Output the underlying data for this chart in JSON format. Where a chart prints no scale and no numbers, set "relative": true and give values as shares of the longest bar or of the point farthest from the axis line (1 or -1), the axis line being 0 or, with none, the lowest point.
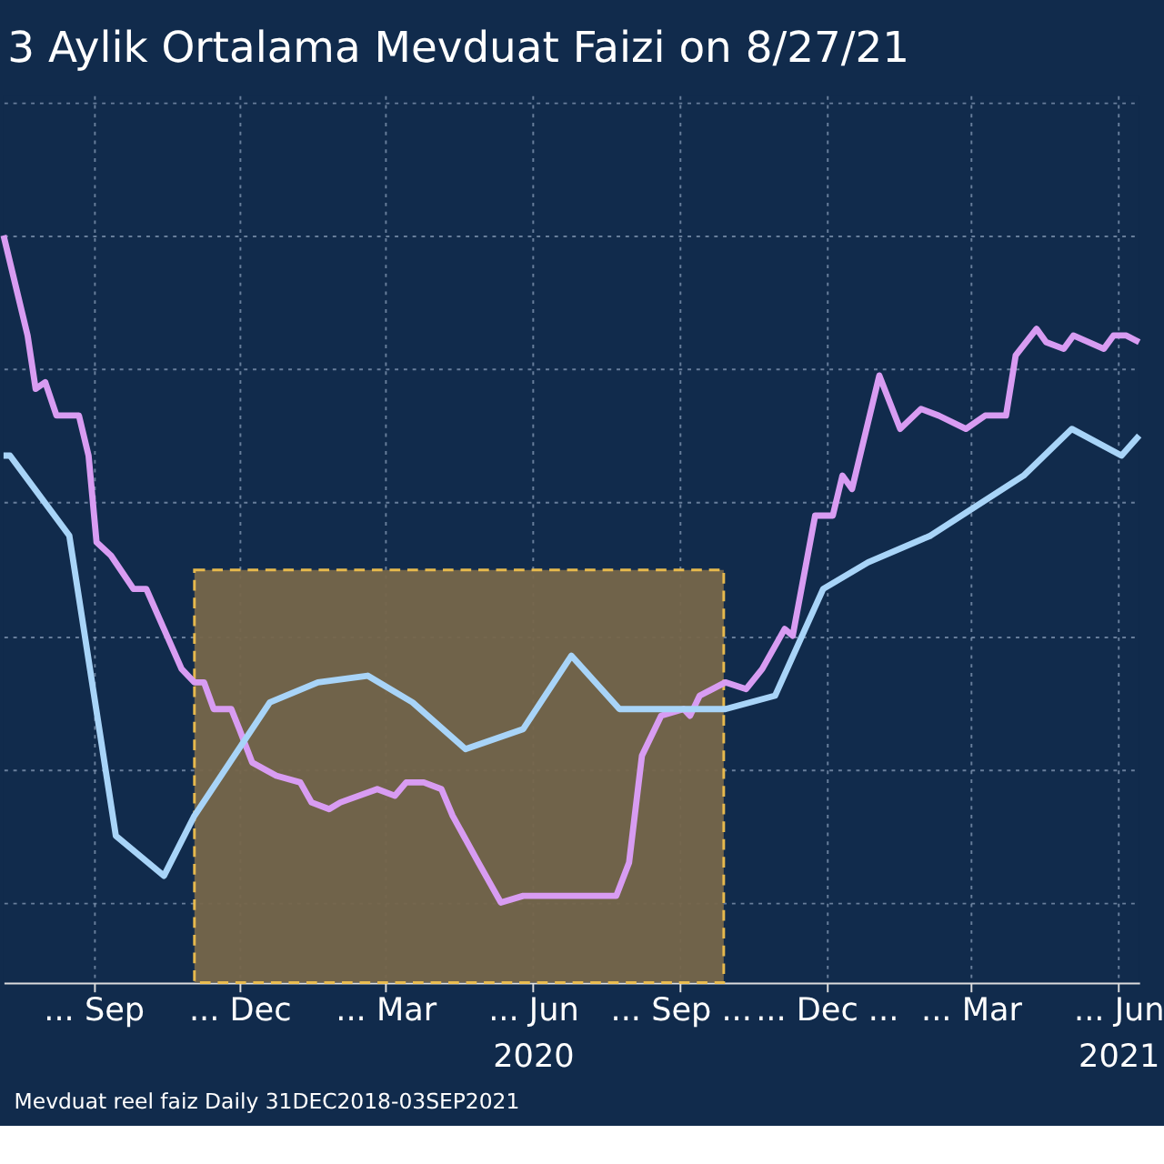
{
  "chart_data": {
    "type": "line",
    "title": "3 Aylik Ortalama Mevduat Faizi on 8/27/21",
    "relative": true,
    "grid": true,
    "legend": false,
    "marker": "none",
    "line_style": "solid",
    "xlim": [
      "2019-07-21",
      "2021-06-28"
    ],
    "xticks": [
      {
        "value": "2019-09-15",
        "label": "... Sep"
      },
      {
        "value": "2019-12-15",
        "label": "... Dec"
      },
      {
        "value": "2020-03-15",
        "label": "... Mar"
      },
      {
        "value": "2020-06-15",
        "label": "... Jun\n2020"
      },
      {
        "value": "2020-09-15",
        "label": "... Sep ..."
      },
      {
        "value": "2020-12-15",
        "label": "... Dec ..."
      },
      {
        "value": "2021-03-15",
        "label": "... Mar"
      },
      {
        "value": "2021-06-15",
        "label": "... Jun\n2021"
      }
    ],
    "series": [
      {
        "color": "#d89cf2",
        "x": [
          "2019-07-21",
          "2019-07-29",
          "2019-08-05",
          "2019-08-10",
          "2019-08-16",
          "2019-08-23",
          "2019-09-06",
          "2019-09-12",
          "2019-09-17",
          "2019-09-26",
          "2019-10-10",
          "2019-10-18",
          "2019-10-29",
          "2019-11-09",
          "2019-11-17",
          "2019-11-23",
          "2019-11-29",
          "2019-12-10",
          "2019-12-15",
          "2019-12-23",
          "2020-01-07",
          "2020-01-22",
          "2020-01-29",
          "2020-02-09",
          "2020-02-16",
          "2020-03-10",
          "2020-03-21",
          "2020-03-28",
          "2020-04-08",
          "2020-04-19",
          "2020-04-26",
          "2020-05-12",
          "2020-05-26",
          "2020-06-09",
          "2020-06-17",
          "2020-06-25",
          "2020-07-09",
          "2020-07-24",
          "2020-08-06",
          "2020-08-14",
          "2020-08-22",
          "2020-09-03",
          "2020-09-17",
          "2020-09-21",
          "2020-09-27",
          "2020-10-13",
          "2020-10-26",
          "2020-11-05",
          "2020-11-19",
          "2020-11-24",
          "2020-12-08",
          "2020-12-19",
          "2020-12-25",
          "2020-12-31",
          "2021-01-17",
          "2021-01-30",
          "2021-02-12",
          "2021-02-23",
          "2021-03-12",
          "2021-03-24",
          "2021-04-06",
          "2021-04-12",
          "2021-04-25",
          "2021-05-01",
          "2021-05-12",
          "2021-05-18",
          "2021-06-06",
          "2021-06-12",
          "2021-06-20",
          "2021-06-28"
        ],
        "values": [
          1.0,
          0.92,
          0.85,
          0.77,
          0.78,
          0.73,
          0.73,
          0.67,
          0.54,
          0.52,
          0.47,
          0.47,
          0.41,
          0.35,
          0.33,
          0.33,
          0.29,
          0.29,
          0.26,
          0.21,
          0.19,
          0.18,
          0.15,
          0.14,
          0.15,
          0.17,
          0.16,
          0.18,
          0.18,
          0.17,
          0.13,
          0.06,
          0.0,
          0.01,
          0.01,
          0.01,
          0.01,
          0.01,
          0.01,
          0.06,
          0.22,
          0.28,
          0.29,
          0.28,
          0.31,
          0.33,
          0.32,
          0.35,
          0.41,
          0.4,
          0.58,
          0.58,
          0.64,
          0.62,
          0.79,
          0.71,
          0.74,
          0.73,
          0.71,
          0.73,
          0.73,
          0.82,
          0.86,
          0.84,
          0.83,
          0.85,
          0.83,
          0.85,
          0.85,
          0.84
        ]
      },
      {
        "color": "#a8d4f8",
        "x": [
          "2019-07-21",
          "2019-07-25",
          "2019-08-31",
          "2019-09-29",
          "2019-10-29",
          "2019-11-17",
          "2020-01-03",
          "2020-02-02",
          "2020-03-04",
          "2020-04-01",
          "2020-05-04",
          "2020-06-09",
          "2020-07-09",
          "2020-08-08",
          "2020-10-13",
          "2020-11-13",
          "2020-12-13",
          "2021-01-10",
          "2021-02-18",
          "2021-04-17",
          "2021-05-17",
          "2021-06-17",
          "2021-06-28"
        ],
        "values": [
          0.67,
          0.67,
          0.55,
          0.1,
          0.04,
          0.13,
          0.3,
          0.33,
          0.34,
          0.3,
          0.23,
          0.26,
          0.37,
          0.29,
          0.29,
          0.31,
          0.47,
          0.51,
          0.55,
          0.64,
          0.71,
          0.67,
          0.7
        ]
      }
    ],
    "bands": [
      {
        "axis": "x",
        "from": "2019-11-17",
        "to": "2020-10-12",
        "color": "#76664a"
      }
    ],
    "annotations": [
      "Mevduat reel faiz  Daily 31DEC2018-03SEP2021"
    ]
  }
}
